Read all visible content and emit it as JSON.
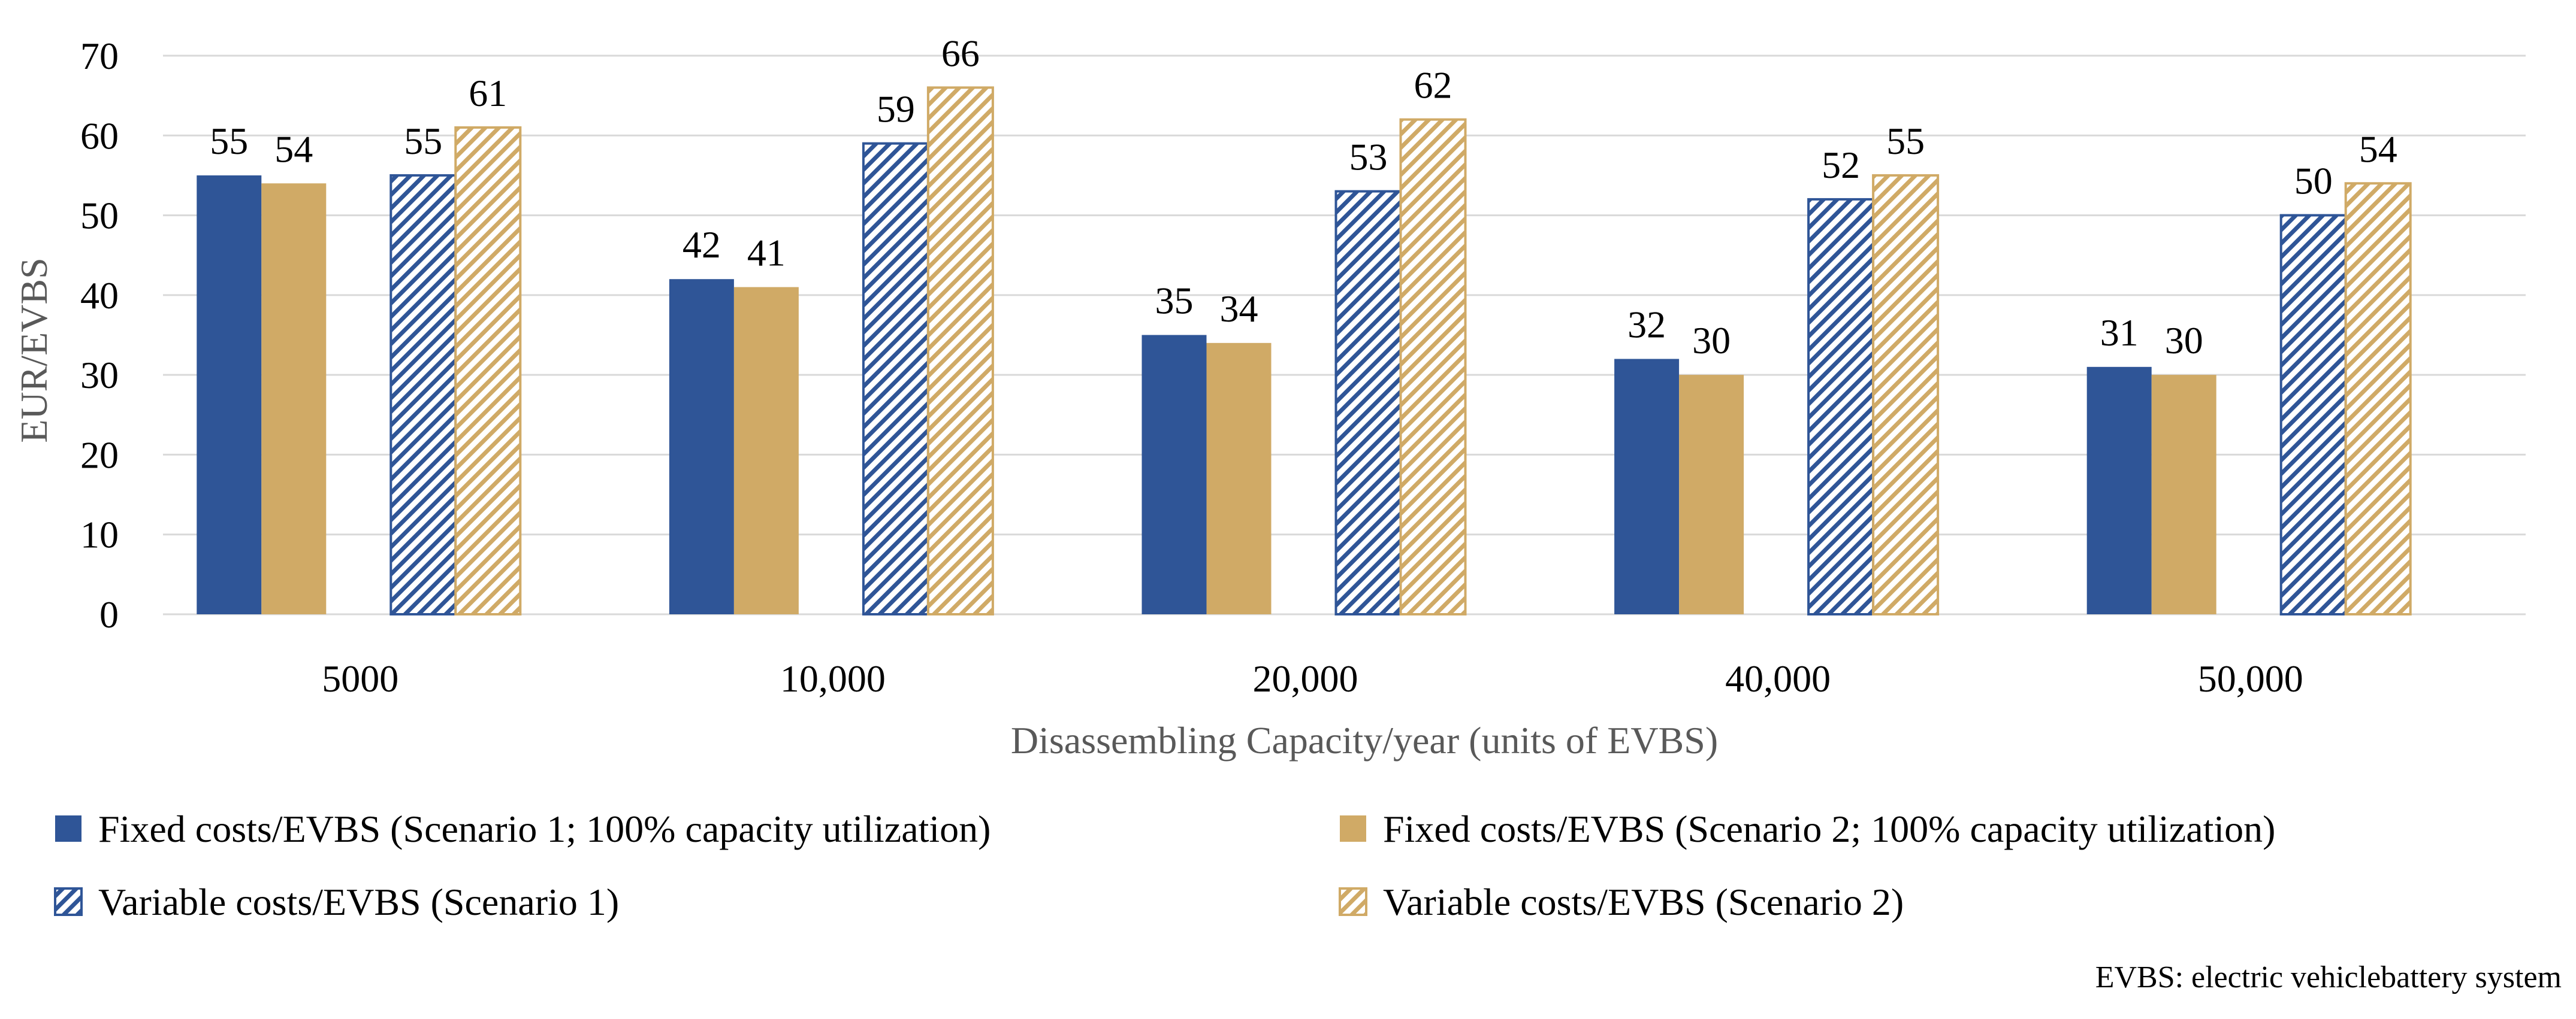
{
  "chart_data": {
    "type": "bar",
    "title": "",
    "xlabel": "Disassembling Capacity/year (units of EVBS)",
    "ylabel": "EUR/EVBS",
    "ylim": [
      0,
      70
    ],
    "yticks": [
      0,
      10,
      20,
      30,
      40,
      50,
      60,
      70
    ],
    "grid": true,
    "legend_position": "bottom",
    "categories": [
      "5000",
      "10,000",
      "20,000",
      "40,000",
      "50,000"
    ],
    "series": [
      {
        "name": "Fixed costs/EVBS (Scenario 1; 100% capacity utilization)",
        "values": [
          55,
          42,
          35,
          32,
          31
        ],
        "color": "#2f5597",
        "pattern": "solid"
      },
      {
        "name": "Fixed costs/EVBS (Scenario 2; 100% capacity utilization)",
        "values": [
          54,
          41,
          34,
          30,
          30
        ],
        "color": "#d0aa66",
        "pattern": "solid"
      },
      {
        "name": "Variable costs/EVBS (Scenario 1)",
        "values": [
          55,
          59,
          53,
          52,
          50
        ],
        "color": "#2f5597",
        "pattern": "hatched"
      },
      {
        "name": "Variable costs/EVBS (Scenario 2)",
        "values": [
          61,
          66,
          62,
          55,
          54
        ],
        "color": "#d0aa66",
        "pattern": "hatched"
      }
    ],
    "footnote": "EVBS: electric vehiclebattery system"
  },
  "colors": {
    "grid": "#d9d9d9",
    "axis_title": "#595959",
    "text": "#000000"
  }
}
